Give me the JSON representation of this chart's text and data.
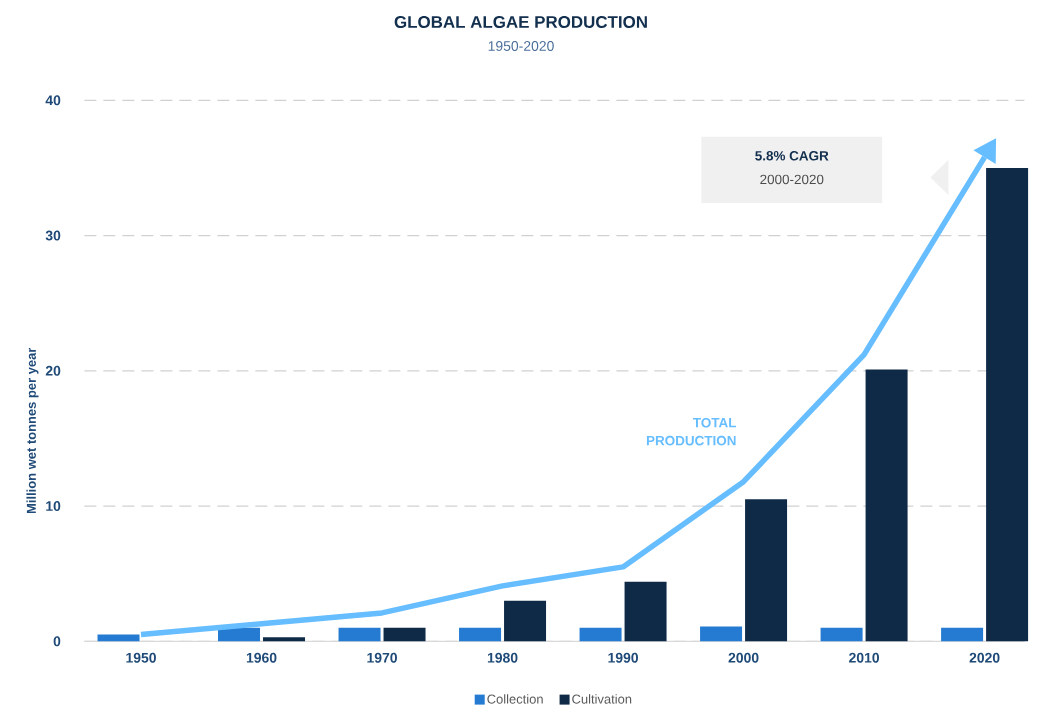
{
  "chart_data": {
    "type": "bar",
    "title": "GLOBAL ALGAE PRODUCTION",
    "subtitle": "1950-2020",
    "ylabel": "Million wet tonnes per year",
    "categories": [
      "1950",
      "1960",
      "1970",
      "1980",
      "1990",
      "2000",
      "2010",
      "2020"
    ],
    "series": [
      {
        "name": "Collection",
        "color": "#247bd1",
        "values": [
          0.5,
          1.0,
          1.0,
          1.0,
          1.0,
          1.1,
          1.0,
          1.0
        ]
      },
      {
        "name": "Cultivation",
        "color": "#0e2a47",
        "values": [
          0,
          0.3,
          1.0,
          3.0,
          4.4,
          10.5,
          20.1,
          35.0
        ]
      },
      {
        "name": "TOTAL PRODUCTION",
        "type": "line",
        "color": "#66bdff",
        "values": [
          0.5,
          1.3,
          2.1,
          4.1,
          5.5,
          11.8,
          21.2,
          35.8
        ]
      }
    ],
    "ylim": [
      0,
      40
    ],
    "yticks": [
      0,
      10,
      20,
      30,
      40
    ],
    "grid": "y",
    "legend": "bottom",
    "annotations": [
      "5.8% CAGR",
      "2000-2020"
    ]
  }
}
